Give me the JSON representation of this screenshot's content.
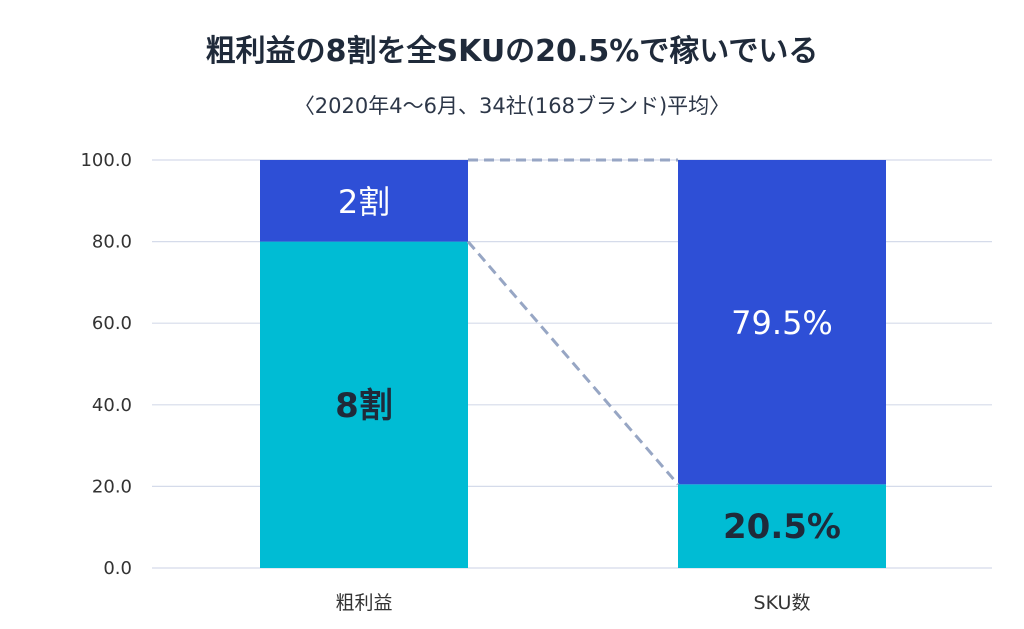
{
  "title": "粗利益の8割を全SKUの20.5%で稼いでいる",
  "subtitle": "〈2020年4〜6月、34社(168ブランド)平均〉",
  "colors": {
    "bottom": "#00BCD4",
    "top": "#2E4FD6",
    "grid": "#D5DBEA",
    "connector": "#97A6C4",
    "axis_text": "#333333"
  },
  "chart_data": {
    "type": "bar",
    "stacked": true,
    "title": "粗利益の8割を全SKUの20.5%で稼いでいる",
    "subtitle": "〈2020年4〜6月、34社(168ブランド)平均〉",
    "categories": [
      "粗利益",
      "SKU数"
    ],
    "ylim": [
      0,
      100
    ],
    "yticks": [
      "0.0",
      "20.0",
      "40.0",
      "60.0",
      "80.0",
      "100.0"
    ],
    "grid": true,
    "series": [
      {
        "values": [
          80,
          20.5
        ],
        "labels": [
          "8割",
          "20.5%"
        ],
        "color": "#00BCD4"
      },
      {
        "values": [
          20,
          79.5
        ],
        "labels": [
          "2割",
          "79.5%"
        ],
        "color": "#2E4FD6"
      }
    ]
  }
}
